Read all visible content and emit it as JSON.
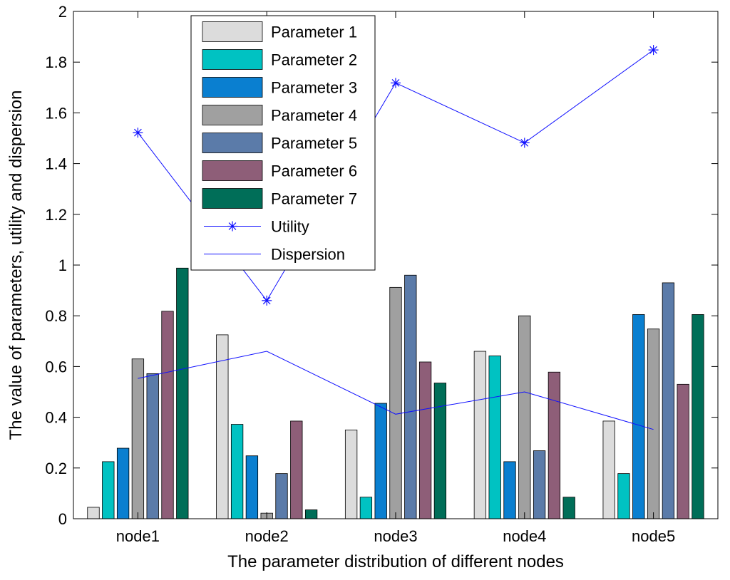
{
  "chart_data": {
    "type": "bar",
    "title": "",
    "xlabel": "The parameter distribution of different nodes",
    "ylabel": "The value of parameters, utility and dispersion",
    "ylim": [
      0,
      2
    ],
    "yticks": [
      0,
      0.2,
      0.4,
      0.6,
      0.8,
      1,
      1.2,
      1.4,
      1.6,
      1.8,
      2
    ],
    "yticklabels": [
      "0",
      "0.2",
      "0.4",
      "0.6",
      "0.8",
      "1",
      "1.2",
      "1.4",
      "1.6",
      "1.8",
      "2"
    ],
    "categories": [
      "node1",
      "node2",
      "node3",
      "node4",
      "node5"
    ],
    "grid": false,
    "legend_position": "top-left",
    "series": [
      {
        "name": "Parameter 1",
        "kind": "bar",
        "color": "#dcdcdc",
        "values": [
          0.045,
          0.725,
          0.35,
          0.66,
          0.385
        ]
      },
      {
        "name": "Parameter 2",
        "kind": "bar",
        "color": "#00c2c2",
        "values": [
          0.225,
          0.372,
          0.085,
          0.642,
          0.178
        ]
      },
      {
        "name": "Parameter 3",
        "kind": "bar",
        "color": "#0a7fd0",
        "values": [
          0.278,
          0.248,
          0.455,
          0.225,
          0.805
        ]
      },
      {
        "name": "Parameter 4",
        "kind": "bar",
        "color": "#a0a0a0",
        "values": [
          0.63,
          0.022,
          0.912,
          0.8,
          0.748
        ]
      },
      {
        "name": "Parameter 5",
        "kind": "bar",
        "color": "#5b7ba9",
        "values": [
          0.572,
          0.178,
          0.96,
          0.268,
          0.93
        ]
      },
      {
        "name": "Parameter 6",
        "kind": "bar",
        "color": "#8e5e78",
        "values": [
          0.818,
          0.385,
          0.618,
          0.578,
          0.53
        ]
      },
      {
        "name": "Parameter 7",
        "kind": "bar",
        "color": "#006e58",
        "values": [
          0.988,
          0.035,
          0.535,
          0.085,
          0.805
        ]
      },
      {
        "name": "Utility",
        "kind": "line-marker",
        "marker": "asterisk",
        "color": "#1010ff",
        "values": [
          1.522,
          0.86,
          1.718,
          1.482,
          1.848
        ]
      },
      {
        "name": "Dispersion",
        "kind": "line",
        "color": "#1010ff",
        "values": [
          0.553,
          0.66,
          0.412,
          0.5,
          0.352
        ]
      }
    ]
  }
}
